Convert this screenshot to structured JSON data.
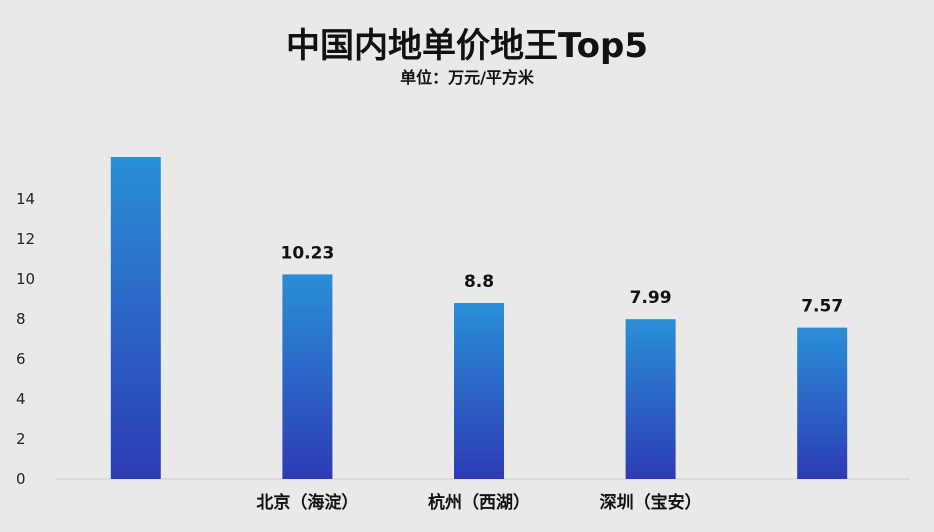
{
  "chart_data": {
    "type": "bar",
    "title": "中国内地单价地王Top5",
    "subtitle": "单位：万元/平方米",
    "categories": [
      "",
      "北京（海淀）",
      "杭州（西湖）",
      "深圳（宝安）",
      ""
    ],
    "values": [
      16.1,
      10.23,
      8.8,
      7.99,
      7.57
    ],
    "data_labels": [
      "",
      "10.23",
      "8.8",
      "7.99",
      "7.57"
    ],
    "ylim": [
      0,
      16
    ],
    "yticks": [
      0,
      2,
      4,
      6,
      8,
      10,
      12,
      14
    ],
    "xlabel": "",
    "ylabel": "",
    "grid": false,
    "bar_color_top": "#2a8fd6",
    "bar_color_bottom": "#2c3bb5"
  }
}
